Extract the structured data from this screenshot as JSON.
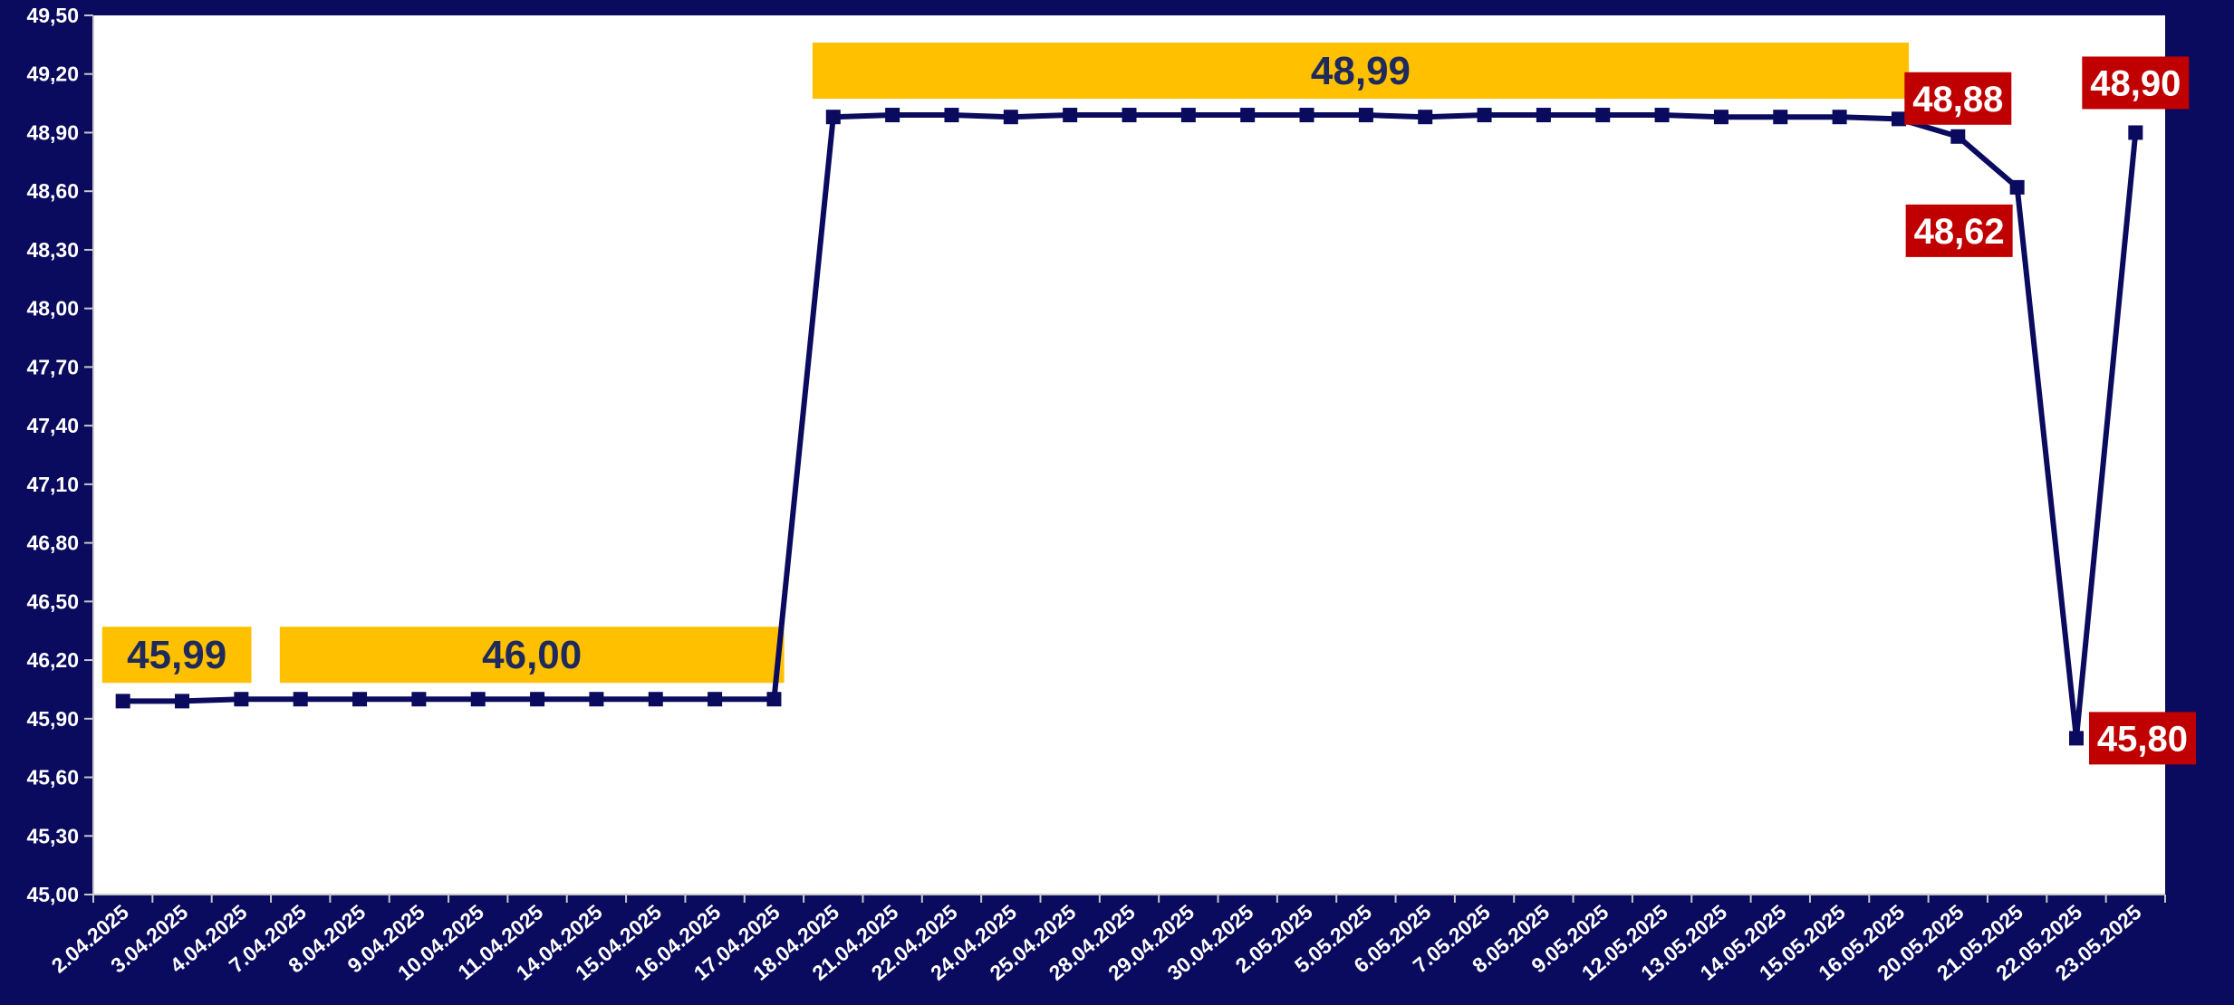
{
  "chart_data": {
    "type": "line",
    "title": "",
    "xlabel": "",
    "ylabel": "",
    "categories": [
      "2.04.2025",
      "3.04.2025",
      "4.04.2025",
      "7.04.2025",
      "8.04.2025",
      "9.04.2025",
      "10.04.2025",
      "11.04.2025",
      "14.04.2025",
      "15.04.2025",
      "16.04.2025",
      "17.04.2025",
      "18.04.2025",
      "21.04.2025",
      "22.04.2025",
      "24.04.2025",
      "25.04.2025",
      "28.04.2025",
      "29.04.2025",
      "30.04.2025",
      "2.05.2025",
      "5.05.2025",
      "6.05.2025",
      "7.05.2025",
      "8.05.2025",
      "9.05.2025",
      "12.05.2025",
      "13.05.2025",
      "14.05.2025",
      "15.05.2025",
      "16.05.2025",
      "20.05.2025",
      "21.05.2025",
      "22.05.2025",
      "23.05.2025"
    ],
    "series": [
      {
        "values": [
          45.99,
          45.99,
          46.0,
          46.0,
          46.0,
          46.0,
          46.0,
          46.0,
          46.0,
          46.0,
          46.0,
          46.0,
          48.98,
          48.99,
          48.99,
          48.98,
          48.99,
          48.99,
          48.99,
          48.99,
          48.99,
          48.99,
          48.98,
          48.99,
          48.99,
          48.99,
          48.99,
          48.98,
          48.98,
          48.98,
          48.97,
          48.88,
          48.62,
          45.8,
          48.9
        ],
        "color": "#0a0a5e"
      }
    ],
    "ylim": [
      45.0,
      49.5
    ],
    "yticks": [
      "45,00",
      "45,30",
      "45,60",
      "45,90",
      "46,20",
      "46,50",
      "46,80",
      "47,10",
      "47,40",
      "47,70",
      "48,00",
      "48,30",
      "48,60",
      "48,90",
      "49,20",
      "49,50"
    ],
    "grid": false,
    "legend": "none",
    "colors": {
      "background": "#0a0a5e",
      "plot_area": "#ffffff",
      "line": "#0a0a5e",
      "highlight_box": "#ffc000",
      "highlight_text": "#1f2a5c",
      "alert_box": "#c00000",
      "alert_text": "#ffffff"
    },
    "annotations": [
      {
        "text": "45,99",
        "style": "highlight",
        "from": 0,
        "to": 2,
        "value": 46.0
      },
      {
        "text": "46,00",
        "style": "highlight",
        "from": 3,
        "to": 11,
        "value": 46.0
      },
      {
        "text": "48,99",
        "style": "highlight",
        "from": 12,
        "to": 30,
        "value": 48.99
      },
      {
        "text": "48,88",
        "style": "alert",
        "point": 31,
        "value": 48.88
      },
      {
        "text": "48,62",
        "style": "alert",
        "point": 32,
        "value": 48.62
      },
      {
        "text": "45,80",
        "style": "alert",
        "point": 33,
        "value": 45.8
      },
      {
        "text": "48,90",
        "style": "alert",
        "point": 34,
        "value": 48.9
      }
    ]
  }
}
